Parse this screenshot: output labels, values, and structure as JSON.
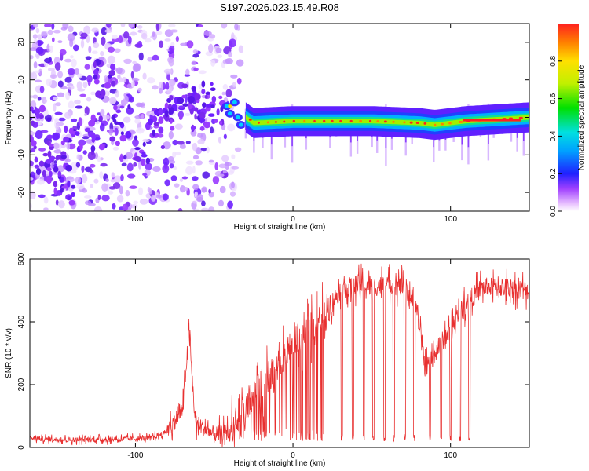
{
  "title": "S197.2026.023.15.49.R08",
  "chart_data": [
    {
      "type": "heatmap",
      "xlabel": "Height of straight line (km)",
      "ylabel": "Frequency (Hz)",
      "xlim": [
        -167,
        150
      ],
      "ylim": [
        -25,
        25
      ],
      "x_ticks": [
        -100,
        0,
        100
      ],
      "y_ticks": [
        -20,
        -10,
        0,
        10,
        20
      ],
      "colorbar": {
        "label": "Normalized spectral amplitude",
        "range": [
          0,
          1
        ],
        "ticks": [
          "0.0",
          "0.2",
          "0.4",
          "0.6",
          "0.8"
        ],
        "tick_values": [
          0,
          0.2,
          0.4,
          0.6,
          0.8
        ]
      },
      "description_points": {
        "noisy_region_x": [
          -167,
          -45
        ],
        "scatter_freq_spread_hz": 25,
        "transition_x": [
          -45,
          -25
        ],
        "ridge_x": [
          -25,
          150
        ],
        "ridge_freq_hz": [
          {
            "x": -40,
            "f": 3
          },
          {
            "x": -30,
            "f": 0
          },
          {
            "x": -25,
            "f": -1.5
          },
          {
            "x": 0,
            "f": -1
          },
          {
            "x": 50,
            "f": -1
          },
          {
            "x": 80,
            "f": -1.5
          },
          {
            "x": 90,
            "f": -2
          },
          {
            "x": 110,
            "f": -1
          },
          {
            "x": 150,
            "f": 0
          }
        ]
      }
    },
    {
      "type": "line",
      "xlabel": "Height of straight line (km)",
      "ylabel": "SNR (10 * v/v)",
      "xlim": [
        -167,
        150
      ],
      "ylim": [
        0,
        600
      ],
      "x_ticks": [
        -100,
        0,
        100
      ],
      "y_ticks": [
        0,
        200,
        400,
        600
      ],
      "color": "#e83030",
      "series": [
        {
          "name": "SNR",
          "points": [
            {
              "x": -167,
              "y": 30
            },
            {
              "x": -150,
              "y": 25
            },
            {
              "x": -120,
              "y": 25
            },
            {
              "x": -90,
              "y": 30
            },
            {
              "x": -80,
              "y": 50
            },
            {
              "x": -70,
              "y": 120
            },
            {
              "x": -66,
              "y": 370
            },
            {
              "x": -62,
              "y": 80
            },
            {
              "x": -50,
              "y": 40
            },
            {
              "x": -40,
              "y": 50
            },
            {
              "x": -30,
              "y": 130
            },
            {
              "x": -20,
              "y": 200
            },
            {
              "x": -10,
              "y": 260
            },
            {
              "x": 0,
              "y": 320
            },
            {
              "x": 10,
              "y": 370
            },
            {
              "x": 20,
              "y": 430
            },
            {
              "x": 30,
              "y": 500
            },
            {
              "x": 40,
              "y": 520
            },
            {
              "x": 50,
              "y": 510
            },
            {
              "x": 60,
              "y": 520
            },
            {
              "x": 70,
              "y": 510
            },
            {
              "x": 78,
              "y": 460
            },
            {
              "x": 84,
              "y": 250
            },
            {
              "x": 90,
              "y": 300
            },
            {
              "x": 100,
              "y": 380
            },
            {
              "x": 110,
              "y": 460
            },
            {
              "x": 120,
              "y": 510
            },
            {
              "x": 135,
              "y": 510
            },
            {
              "x": 150,
              "y": 500
            }
          ]
        },
        {
          "name": "SNR dropouts",
          "dropout_x": [
            31,
            38,
            45,
            51,
            58,
            64,
            71,
            77,
            87,
            94,
            100,
            106,
            112
          ]
        }
      ]
    }
  ]
}
